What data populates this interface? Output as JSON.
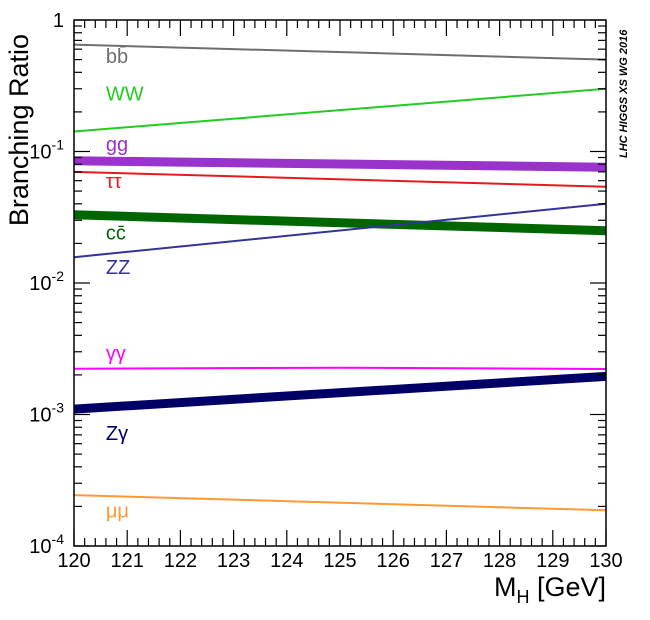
{
  "chart_data": {
    "type": "line",
    "title": "",
    "watermark": "LHC HIGGS XS WG 2016",
    "xlabel": "M_H [GeV]",
    "xlabel_main": "M",
    "xlabel_sub": "H",
    "xlabel_unit": " [GeV]",
    "ylabel": "Branching Ratio",
    "yscale": "log",
    "xlim": [
      120,
      130
    ],
    "ylim": [
      0.0001,
      1
    ],
    "x_ticks": [
      120,
      121,
      122,
      123,
      124,
      125,
      126,
      127,
      128,
      129,
      130
    ],
    "y_ticks": [
      {
        "value": 1,
        "base": "1",
        "exp": ""
      },
      {
        "value": 0.1,
        "base": "10",
        "exp": "-1"
      },
      {
        "value": 0.01,
        "base": "10",
        "exp": "-2"
      },
      {
        "value": 0.001,
        "base": "10",
        "exp": "-3"
      },
      {
        "value": 0.0001,
        "base": "10",
        "exp": "-4"
      }
    ],
    "grid": false,
    "series": [
      {
        "name": "bb̄",
        "color": "#6e6e6e",
        "band": "thin",
        "x": [
          120,
          130
        ],
        "y": [
          0.65,
          0.5
        ],
        "label_at": [
          120.6,
          0.47
        ]
      },
      {
        "name": "WW",
        "color": "#22cc22",
        "band": "thin",
        "x": [
          120,
          130
        ],
        "y": [
          0.142,
          0.3
        ],
        "label_at": [
          120.6,
          0.245
        ]
      },
      {
        "name": "gg",
        "color": "#9933cc",
        "band": "thick",
        "x": [
          120,
          130
        ],
        "y": [
          0.085,
          0.076
        ],
        "label_at": [
          120.6,
          0.101
        ]
      },
      {
        "name": "ττ",
        "color": "#e41a1c",
        "band": "thin",
        "x": [
          120,
          130
        ],
        "y": [
          0.07,
          0.054
        ],
        "label_at": [
          120.6,
          0.053
        ]
      },
      {
        "name": "cc̄",
        "color": "#006600",
        "band": "thick",
        "x": [
          120,
          130
        ],
        "y": [
          0.033,
          0.025
        ],
        "label_at": [
          120.6,
          0.0215
        ]
      },
      {
        "name": "ZZ",
        "color": "#333399",
        "band": "thin",
        "x": [
          120,
          130
        ],
        "y": [
          0.0157,
          0.04
        ],
        "label_at": [
          120.6,
          0.0117
        ]
      },
      {
        "name": "γγ",
        "color": "#ff00ff",
        "band": "thin",
        "x": [
          120,
          125,
          130
        ],
        "y": [
          0.00223,
          0.00227,
          0.00222
        ],
        "label_at": [
          120.6,
          0.0026
        ]
      },
      {
        "name": "Zγ",
        "color": "#000066",
        "band": "thick",
        "x": [
          120,
          130
        ],
        "y": [
          0.0011,
          0.00195
        ],
        "label_at": [
          120.6,
          0.00064
        ]
      },
      {
        "name": "μμ",
        "color": "#ff9933",
        "band": "thin",
        "x": [
          120,
          130
        ],
        "y": [
          0.000244,
          0.000187
        ],
        "label_at": [
          120.6,
          0.000165
        ]
      }
    ]
  }
}
